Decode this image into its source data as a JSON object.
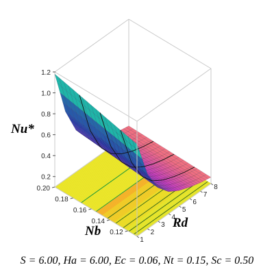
{
  "caption": "S = 6.00, Ha = 6.00, Ec = 0.06, Nt = 0.15, Sc = 0.50",
  "chart_data": {
    "type": "surface",
    "title": "",
    "zlabel": "Nu*",
    "xlabel": "Rd",
    "ylabel": "Nb",
    "x_ticks": [
      "1",
      "2",
      "3",
      "4",
      "5",
      "6",
      "7",
      "8"
    ],
    "y_ticks": [
      "0.12",
      "0.14",
      "0.16",
      "0.18",
      "0.20"
    ],
    "z_ticks": [
      "0.2",
      "0.4",
      "0.6",
      "0.8",
      "1.0",
      "1.2"
    ],
    "xlim": [
      1,
      8
    ],
    "ylim": [
      0.11,
      0.2
    ],
    "zlim": [
      0.1,
      1.2
    ],
    "surface_profile": {
      "x": [
        1,
        2,
        3,
        4,
        5,
        6,
        7,
        8
      ],
      "nu_at_nb_0_20": [
        1.18,
        0.75,
        0.5,
        0.36,
        0.28,
        0.23,
        0.2,
        0.18
      ],
      "nu_at_nb_0_11": [
        0.98,
        0.62,
        0.42,
        0.31,
        0.25,
        0.21,
        0.18,
        0.16
      ]
    },
    "contour_projection": true,
    "colormap": [
      "#1fb5a8",
      "#2a3fa8",
      "#c03cc0",
      "#f07080"
    ]
  }
}
